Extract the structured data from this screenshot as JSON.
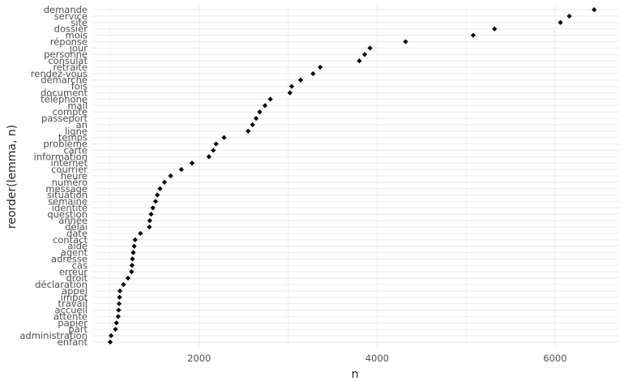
{
  "chart_data": {
    "type": "scatter",
    "title": "",
    "xlabel": "n",
    "ylabel": "reorder(lemma, n)",
    "xlim": [
      800,
      6720
    ],
    "x_ticks": [
      2000,
      4000,
      6000
    ],
    "x_minor_ticks": [
      1000,
      3000,
      5000
    ],
    "grid": true,
    "point_color": "#000000",
    "grid_color": "#ebebeb",
    "categories": [
      "enfant",
      "administration",
      "part",
      "papier",
      "attente",
      "accueil",
      "travail",
      "impot",
      "appel",
      "déclaration",
      "droit",
      "erreur",
      "cas",
      "adresse",
      "agent",
      "aide",
      "contact",
      "date",
      "délai",
      "année",
      "question",
      "identité",
      "semaine",
      "situation",
      "message",
      "numéro",
      "heure",
      "courrier",
      "internet",
      "information",
      "carte",
      "problème",
      "temps",
      "ligne",
      "an",
      "passeport",
      "compte",
      "mail",
      "téléphone",
      "document",
      "fois",
      "démarche",
      "rendez-vous",
      "retraite",
      "consulat",
      "personne",
      "jour",
      "réponse",
      "mois",
      "dossier",
      "site",
      "service",
      "demande"
    ],
    "values": [
      1000,
      1010,
      1060,
      1070,
      1090,
      1095,
      1100,
      1105,
      1110,
      1150,
      1200,
      1240,
      1245,
      1250,
      1260,
      1270,
      1280,
      1340,
      1440,
      1445,
      1460,
      1480,
      1510,
      1530,
      1560,
      1610,
      1680,
      1800,
      1920,
      2110,
      2160,
      2190,
      2280,
      2550,
      2600,
      2640,
      2680,
      2740,
      2800,
      3020,
      3040,
      3140,
      3280,
      3360,
      3800,
      3860,
      3920,
      4320,
      5080,
      5320,
      6060,
      6160,
      6440
    ]
  }
}
